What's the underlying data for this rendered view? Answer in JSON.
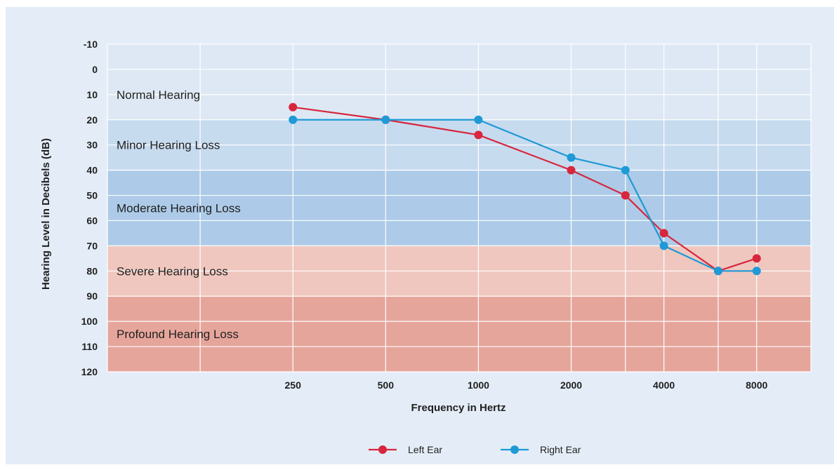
{
  "chart_data": {
    "type": "line",
    "title": "",
    "xlabel": "Frequency in Hertz",
    "ylabel": "Hearing Level in Decibels (dB)",
    "ylim": [
      -10,
      120
    ],
    "y_inverted": true,
    "y_ticks": [
      "-10",
      "0",
      "10",
      "20",
      "30",
      "40",
      "50",
      "60",
      "70",
      "80",
      "90",
      "100",
      "110",
      "120"
    ],
    "x_tick_labels": [
      "250",
      "500",
      "1000",
      "2000",
      "4000",
      "8000"
    ],
    "x_scale": "log2 (octave)",
    "x_range": [
      62.5,
      12000
    ],
    "grid": true,
    "legend_position": "bottom-center",
    "bands": [
      {
        "label": "Normal Hearing",
        "from": -10,
        "to": 20,
        "color": "#dde8f4"
      },
      {
        "label": "Minor Hearing Loss",
        "from": 20,
        "to": 40,
        "color": "#c7dbef"
      },
      {
        "label": "Moderate Hearing Loss",
        "from": 40,
        "to": 70,
        "color": "#adcbe8"
      },
      {
        "label": "Severe Hearing Loss",
        "from": 70,
        "to": 90,
        "color": "#efc7bf"
      },
      {
        "label": "Profound  Hearing Loss",
        "from": 90,
        "to": 120,
        "color": "#e6a59b"
      }
    ],
    "series": [
      {
        "name": "Left Ear",
        "color": "#d7263d",
        "x": [
          250,
          500,
          1000,
          2000,
          3000,
          4000,
          6000,
          8000
        ],
        "y": [
          15,
          20,
          26,
          40,
          50,
          65,
          80,
          75
        ]
      },
      {
        "name": "Right Ear",
        "color": "#1e9ad6",
        "x": [
          250,
          500,
          1000,
          2000,
          3000,
          4000,
          6000,
          8000
        ],
        "y": [
          20,
          20,
          20,
          35,
          40,
          70,
          80,
          80
        ]
      }
    ]
  }
}
